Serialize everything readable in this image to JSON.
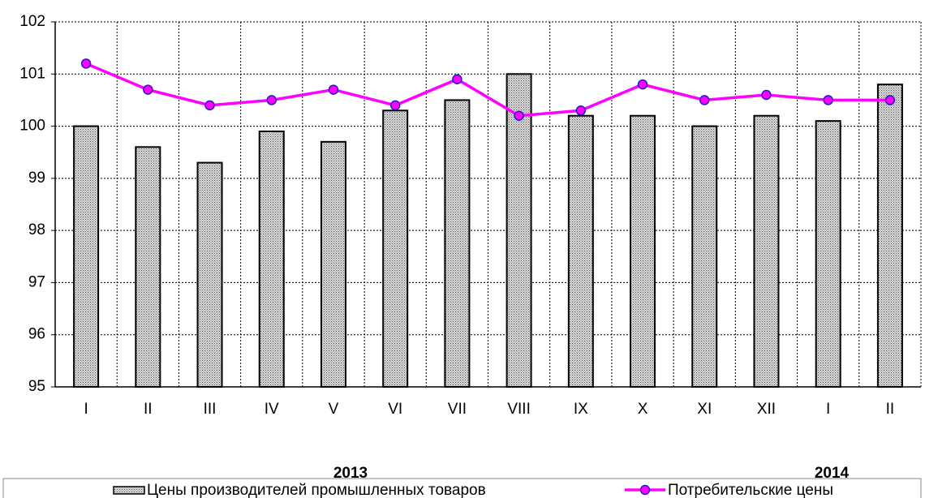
{
  "chart_data": {
    "type": "bar_line",
    "categories": [
      "I",
      "II",
      "III",
      "IV",
      "V",
      "VI",
      "VII",
      "VIII",
      "IX",
      "X",
      "XI",
      "XII",
      "I",
      "II"
    ],
    "series": [
      {
        "name": "Цены производителей промышленных товаров",
        "type": "bar",
        "color": "#a0a0a0",
        "values": [
          100.0,
          99.6,
          99.3,
          99.9,
          99.7,
          100.3,
          100.5,
          101.0,
          100.2,
          100.2,
          100.0,
          100.2,
          100.1,
          100.8
        ]
      },
      {
        "name": "Потребительские цены",
        "type": "line",
        "color": "#ff00ff",
        "values": [
          101.2,
          100.7,
          100.4,
          100.5,
          100.7,
          100.4,
          100.9,
          100.2,
          100.3,
          100.8,
          100.5,
          100.6,
          100.5,
          100.5
        ]
      }
    ],
    "year_labels": [
      "2013",
      "2014"
    ],
    "ylim": [
      95,
      102
    ],
    "yticks": [
      95,
      96,
      97,
      98,
      99,
      100,
      101,
      102
    ],
    "grid": true,
    "legend": "bottom"
  }
}
